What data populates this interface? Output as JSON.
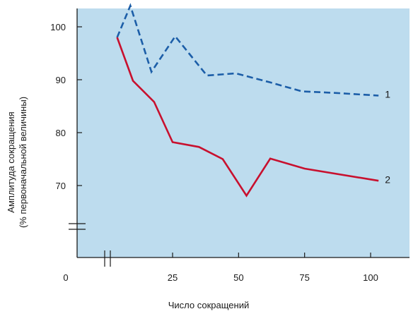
{
  "chart_data": {
    "type": "line",
    "title": "",
    "xlabel": "Число сокращений",
    "ylabel_lines": [
      "Амплитуда сокращения",
      "(% первоначальной величины)"
    ],
    "x_ticks": [
      0,
      25,
      50,
      75,
      100
    ],
    "y_ticks": [
      70,
      80,
      90,
      100
    ],
    "xlim": [
      0,
      113
    ],
    "ylim": [
      63,
      103
    ],
    "axis_breaks": [
      "x",
      "y"
    ],
    "grid": false,
    "background_color": "#bddcee",
    "series": [
      {
        "name": "1",
        "style": "dashed",
        "color": "#1c5ea8",
        "x": [
          4,
          9,
          17,
          26,
          38,
          49,
          62,
          74,
          87,
          103
        ],
        "y": [
          98,
          104,
          91.5,
          98.2,
          90.8,
          91.2,
          89.5,
          87.8,
          87.5,
          87
        ]
      },
      {
        "name": "2",
        "style": "solid",
        "color": "#c8102e",
        "x": [
          4,
          10,
          18,
          25,
          35,
          44,
          53,
          62,
          75,
          103
        ],
        "y": [
          98,
          89.8,
          85.8,
          78.2,
          77.3,
          75,
          68.1,
          75.1,
          73.2,
          70.9
        ]
      }
    ]
  }
}
